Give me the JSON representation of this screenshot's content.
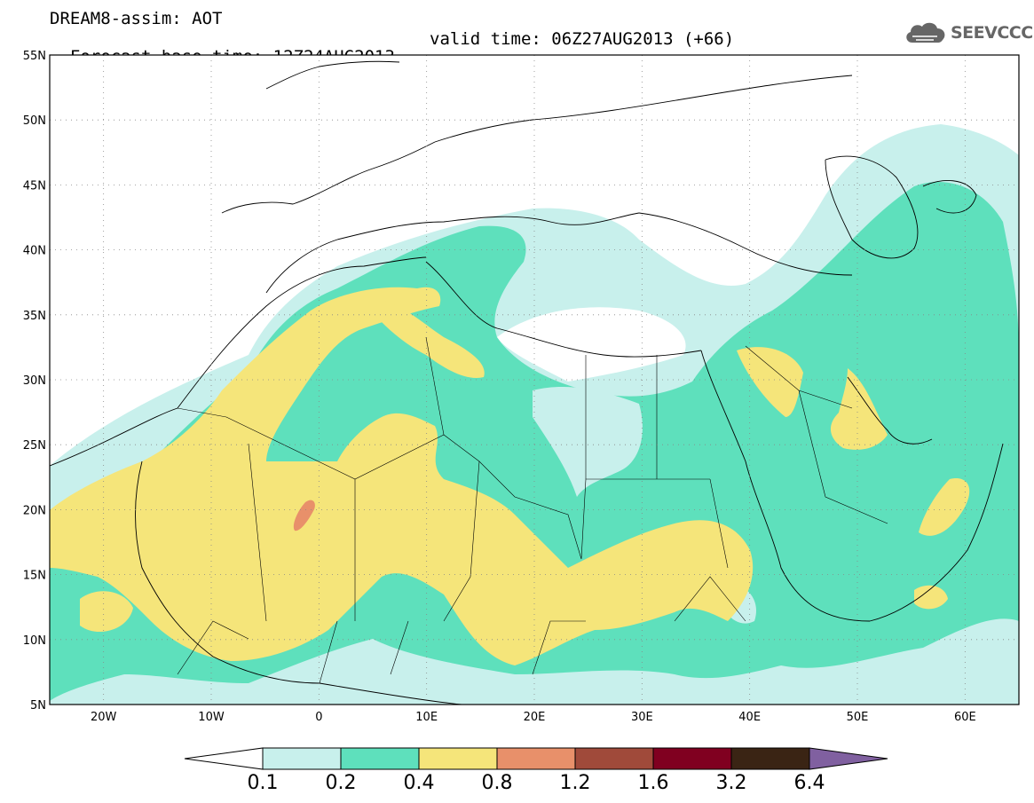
{
  "title": {
    "line1": "DREAM8-assim: AOT",
    "base": "Forecast base time: 12Z24AUG2013",
    "valid": "valid time: 06Z27AUG2013 (+66)"
  },
  "logo": {
    "icon": "cloud-icon",
    "text": "SEEVCCC"
  },
  "map": {
    "lon_range": [
      -25,
      65
    ],
    "lat_range": [
      5,
      55
    ],
    "lat_ticks": [
      "5N",
      "10N",
      "15N",
      "20N",
      "25N",
      "30N",
      "35N",
      "40N",
      "45N",
      "50N",
      "55N"
    ],
    "lon_ticks": [
      "20W",
      "10W",
      "0",
      "10E",
      "20E",
      "30E",
      "40E",
      "50E",
      "60E"
    ],
    "grid": "dotted"
  },
  "legend": {
    "levels": [
      "0.1",
      "0.2",
      "0.4",
      "0.8",
      "1.2",
      "1.6",
      "3.2",
      "6.4"
    ],
    "colors": [
      "#c8f0ec",
      "#5ee0bc",
      "#f5e57a",
      "#e8906a",
      "#a04a3a",
      "#800020",
      "#3a2414",
      "#8060a0"
    ],
    "under_color": "#ffffff"
  }
}
